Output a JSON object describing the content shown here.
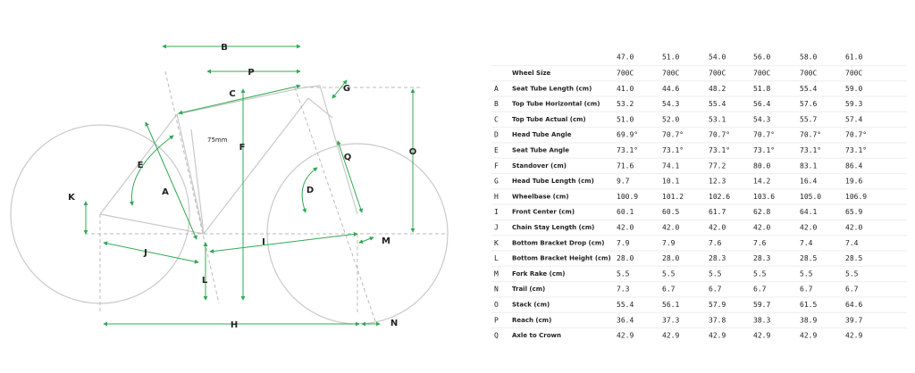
{
  "diagram": {
    "note": "75mm"
  },
  "table": {
    "columns": [
      "47.0",
      "51.0",
      "54.0",
      "56.0",
      "58.0",
      "61.0"
    ],
    "rows": [
      {
        "label": "Wheel Size",
        "values": [
          "700C",
          "700C",
          "700C",
          "700C",
          "700C",
          "700C"
        ]
      },
      {
        "letter": "A",
        "label": "Seat Tube Length (cm)",
        "values": [
          "41.0",
          "44.6",
          "48.2",
          "51.8",
          "55.4",
          "59.0"
        ]
      },
      {
        "letter": "B",
        "label": "Top Tube Horizontal (cm)",
        "values": [
          "53.2",
          "54.3",
          "55.4",
          "56.4",
          "57.6",
          "59.3"
        ]
      },
      {
        "letter": "C",
        "label": "Top Tube Actual (cm)",
        "values": [
          "51.0",
          "52.0",
          "53.1",
          "54.3",
          "55.7",
          "57.4"
        ]
      },
      {
        "letter": "D",
        "label": "Head Tube Angle",
        "values": [
          "69.9°",
          "70.7°",
          "70.7°",
          "70.7°",
          "70.7°",
          "70.7°"
        ]
      },
      {
        "letter": "E",
        "label": "Seat Tube Angle",
        "values": [
          "73.1°",
          "73.1°",
          "73.1°",
          "73.1°",
          "73.1°",
          "73.1°"
        ]
      },
      {
        "letter": "F",
        "label": "Standover (cm)",
        "values": [
          "71.6",
          "74.1",
          "77.2",
          "80.0",
          "83.1",
          "86.4"
        ]
      },
      {
        "letter": "G",
        "label": "Head Tube Length (cm)",
        "values": [
          "9.7",
          "10.1",
          "12.3",
          "14.2",
          "16.4",
          "19.6"
        ]
      },
      {
        "letter": "H",
        "label": "Wheelbase (cm)",
        "values": [
          "100.9",
          "101.2",
          "102.6",
          "103.6",
          "105.0",
          "106.9"
        ]
      },
      {
        "letter": "I",
        "label": "Front Center (cm)",
        "values": [
          "60.1",
          "60.5",
          "61.7",
          "62.8",
          "64.1",
          "65.9"
        ]
      },
      {
        "letter": "J",
        "label": "Chain Stay Length (cm)",
        "values": [
          "42.0",
          "42.0",
          "42.0",
          "42.0",
          "42.0",
          "42.0"
        ]
      },
      {
        "letter": "K",
        "label": "Bottom Bracket Drop (cm)",
        "values": [
          "7.9",
          "7.9",
          "7.6",
          "7.6",
          "7.4",
          "7.4"
        ]
      },
      {
        "letter": "L",
        "label": "Bottom Bracket Height (cm)",
        "values": [
          "28.0",
          "28.0",
          "28.3",
          "28.3",
          "28.5",
          "28.5"
        ]
      },
      {
        "letter": "M",
        "label": "Fork Rake (cm)",
        "values": [
          "5.5",
          "5.5",
          "5.5",
          "5.5",
          "5.5",
          "5.5"
        ]
      },
      {
        "letter": "N",
        "label": "Trail (cm)",
        "values": [
          "7.3",
          "6.7",
          "6.7",
          "6.7",
          "6.7",
          "6.7"
        ]
      },
      {
        "letter": "O",
        "label": "Stack (cm)",
        "values": [
          "55.4",
          "56.1",
          "57.9",
          "59.7",
          "61.5",
          "64.6"
        ]
      },
      {
        "letter": "P",
        "label": "Reach (cm)",
        "values": [
          "36.4",
          "37.3",
          "37.8",
          "38.3",
          "38.9",
          "39.7"
        ]
      },
      {
        "letter": "Q",
        "label": "Axle to Crown",
        "values": [
          "42.9",
          "42.9",
          "42.9",
          "42.9",
          "42.9",
          "42.9"
        ]
      }
    ]
  }
}
